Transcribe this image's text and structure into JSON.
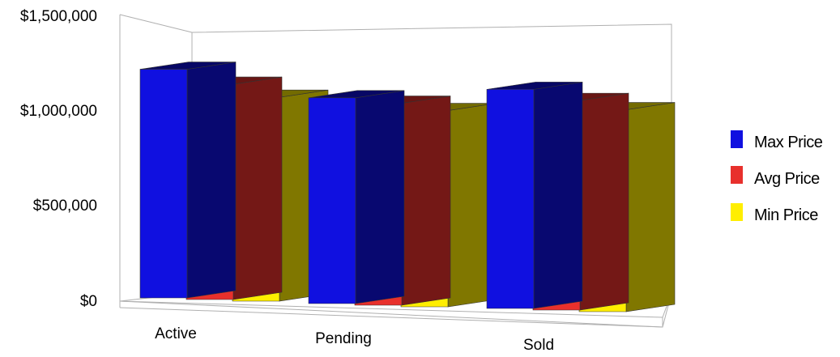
{
  "chart_data": {
    "type": "bar",
    "subtype": "3d-clustered-column",
    "categories": [
      "Active",
      "Pending",
      "Sold"
    ],
    "series": [
      {
        "name": "Max Price",
        "values": [
          1200000,
          1080000,
          1150000
        ],
        "color": "#1010e0"
      },
      {
        "name": "Avg Price",
        "values": [
          1130000,
          1060000,
          1100000
        ],
        "color": "#e8302c"
      },
      {
        "name": "Min Price",
        "values": [
          1070000,
          1030000,
          1060000
        ],
        "color": "#ffee00"
      }
    ],
    "y_ticks": [
      "$1,500,000",
      "$1,000,000",
      "$500,000",
      "$0"
    ],
    "ylim": [
      0,
      1500000
    ],
    "title": "",
    "xlabel": "",
    "ylabel": "",
    "grid": false,
    "legend_position": "right"
  }
}
